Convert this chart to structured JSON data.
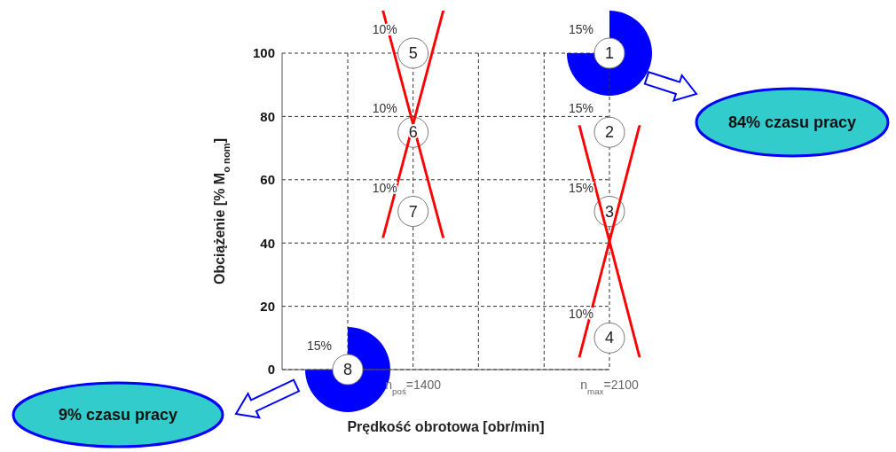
{
  "chart_data": {
    "type": "scatter",
    "xlabel": "Prędkość obrotowa [obr/min]",
    "ylabel": "Obciążenie [% M$_{o nom}$]",
    "x": [
      2100,
      2100,
      2100,
      2100,
      1400,
      1400,
      1400,
      1167
    ],
    "values": [
      100,
      75,
      50,
      10,
      100,
      75,
      50,
      0
    ],
    "color": "#ffffff",
    "marker": "circle",
    "xlim": [
      933,
      2100
    ],
    "xticks": [
      {
        "value": 1167,
        "label": null
      },
      {
        "value": 1400,
        "label": "n$_{poś}$=1400"
      },
      {
        "value": 1633,
        "label": null
      },
      {
        "value": 1867,
        "label": null
      },
      {
        "value": 2100,
        "label": "n$_{max}$=2100"
      }
    ],
    "ylim": [
      0,
      100
    ],
    "yticks": [
      0,
      20,
      40,
      60,
      80,
      100
    ],
    "grid": true,
    "annotations": [
      {
        "text": "1",
        "x": 2100,
        "y": 100
      },
      {
        "text": "2",
        "x": 2100,
        "y": 75
      },
      {
        "text": "3",
        "x": 2100,
        "y": 50
      },
      {
        "text": "4",
        "x": 2100,
        "y": 10
      },
      {
        "text": "5",
        "x": 1400,
        "y": 100
      },
      {
        "text": "6",
        "x": 1400,
        "y": 75
      },
      {
        "text": "7",
        "x": 1400,
        "y": 50
      },
      {
        "text": "8",
        "x": 1167,
        "y": 0
      },
      {
        "text": "15%",
        "x": 2100,
        "y": 100
      },
      {
        "text": "15%",
        "x": 2100,
        "y": 75
      },
      {
        "text": "15%",
        "x": 2100,
        "y": 50
      },
      {
        "text": "10%",
        "x": 2100,
        "y": 10
      },
      {
        "text": "10%",
        "x": 1400,
        "y": 100
      },
      {
        "text": "10%",
        "x": 1400,
        "y": 75
      },
      {
        "text": "10%",
        "x": 1400,
        "y": 50
      },
      {
        "text": "15%",
        "x": 1167,
        "y": 0
      },
      "84% czasu pracy",
      "9% czasu pracy"
    ]
  }
}
